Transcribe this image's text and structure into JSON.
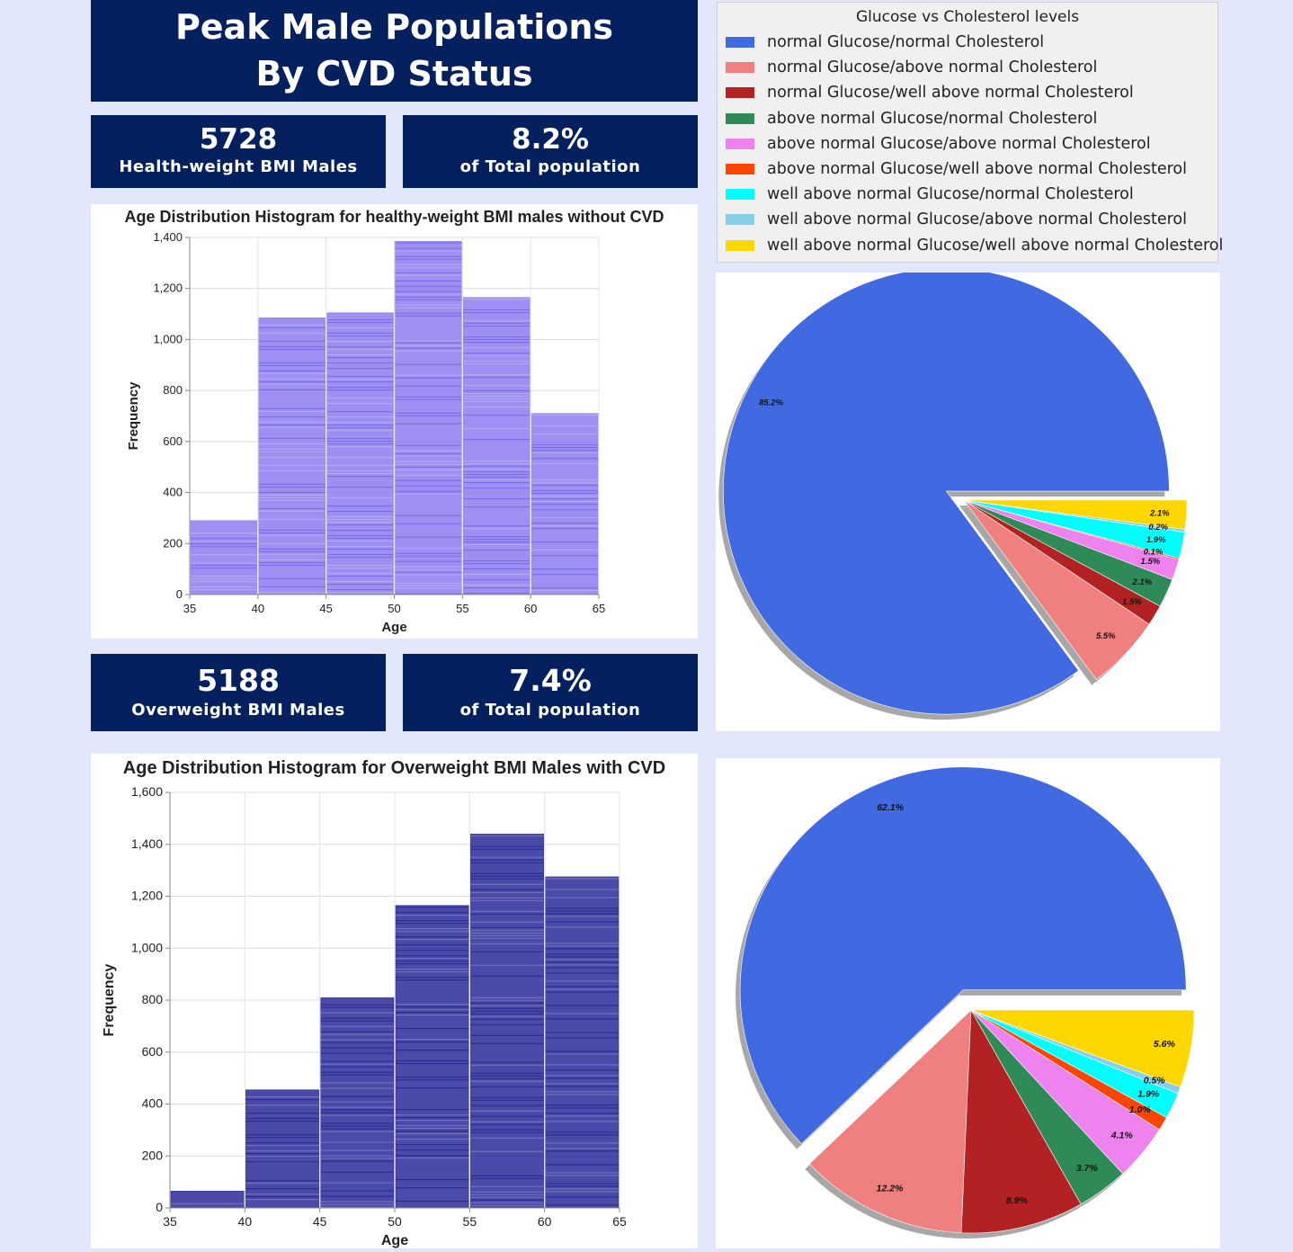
{
  "header": {
    "title_line1": "Peak Male Populations",
    "title_line2": "By CVD Status"
  },
  "kpis": {
    "healthy_count": "5728",
    "healthy_label": "Health-weight BMI Males",
    "healthy_pct": "8.2%",
    "healthy_pct_label": "of Total population",
    "overweight_count": "5188",
    "overweight_label": "Overweight BMI Males",
    "overweight_pct": "7.4%",
    "overweight_pct_label": "of Total population"
  },
  "legend": {
    "title": "Glucose vs Cholesterol levels",
    "items": [
      {
        "label": "normal Glucose/normal Cholesterol",
        "color": "#4169e1"
      },
      {
        "label": "normal Glucose/above normal Cholesterol",
        "color": "#f08080"
      },
      {
        "label": "normal Glucose/well above normal Cholesterol",
        "color": "#b22222"
      },
      {
        "label": "above normal Glucose/normal Cholesterol",
        "color": "#2e8b57"
      },
      {
        "label": "above normal Glucose/above normal Cholesterol",
        "color": "#ee82ee"
      },
      {
        "label": "above normal Glucose/well above normal Cholesterol",
        "color": "#ff4500"
      },
      {
        "label": "well above normal Glucose/normal Cholesterol",
        "color": "#00ffff"
      },
      {
        "label": "well above normal Glucose/above normal Cholesterol",
        "color": "#87ceeb"
      },
      {
        "label": "well above normal Glucose/well above normal Cholesterol",
        "color": "#ffd700"
      }
    ]
  },
  "chart_data": [
    {
      "type": "bar",
      "title": "Age Distribution Histogram for healthy-weight BMI males without CVD",
      "xlabel": "Age",
      "ylabel": "Frequency",
      "bin_edges": [
        35,
        40,
        45,
        50,
        55,
        60,
        65
      ],
      "x_ticks": [
        "35",
        "40",
        "45",
        "50",
        "55",
        "60",
        "65"
      ],
      "values": [
        290,
        1085,
        1105,
        1385,
        1165,
        710
      ],
      "ylim": [
        0,
        1400
      ],
      "y_ticks": [
        "0",
        "200",
        "400",
        "600",
        "800",
        "1,000",
        "1,200",
        "1,400"
      ],
      "grid": true,
      "color": "#8c7cf0"
    },
    {
      "type": "pie",
      "slices": [
        {
          "value": 85.2,
          "label": "85.2%",
          "color": "#4169e1"
        },
        {
          "value": 5.5,
          "label": "5.5%",
          "color": "#f08080"
        },
        {
          "value": 1.5,
          "label": "1.5%",
          "color": "#b22222"
        },
        {
          "value": 2.1,
          "label": "2.1%",
          "color": "#2e8b57"
        },
        {
          "value": 1.5,
          "label": "1.5%",
          "color": "#ee82ee"
        },
        {
          "value": 0.1,
          "label": "0.1%",
          "color": "#ff4500"
        },
        {
          "value": 1.9,
          "label": "1.9%",
          "color": "#00ffff"
        },
        {
          "value": 0.2,
          "label": "0.2%",
          "color": "#87ceeb"
        },
        {
          "value": 2.1,
          "label": "2.1%",
          "color": "#ffd700"
        }
      ]
    },
    {
      "type": "bar",
      "title": "Age Distribution Histogram for Overweight BMI Males with CVD",
      "xlabel": "Age",
      "ylabel": "Frequency",
      "bin_edges": [
        35,
        40,
        45,
        50,
        55,
        60,
        65
      ],
      "x_ticks": [
        "35",
        "40",
        "45",
        "50",
        "55",
        "60",
        "65"
      ],
      "values": [
        65,
        455,
        810,
        1165,
        1440,
        1275
      ],
      "ylim": [
        0,
        1600
      ],
      "y_ticks": [
        "0",
        "200",
        "400",
        "600",
        "800",
        "1,000",
        "1,200",
        "1,400",
        "1,600"
      ],
      "grid": true,
      "color": "#2a2a9a"
    },
    {
      "type": "pie",
      "slices": [
        {
          "value": 62.1,
          "label": "62.1%",
          "color": "#4169e1"
        },
        {
          "value": 12.2,
          "label": "12.2%",
          "color": "#f08080"
        },
        {
          "value": 8.9,
          "label": "8.9%",
          "color": "#b22222"
        },
        {
          "value": 3.7,
          "label": "3.7%",
          "color": "#2e8b57"
        },
        {
          "value": 4.1,
          "label": "4.1%",
          "color": "#ee82ee"
        },
        {
          "value": 1.0,
          "label": "1.0%",
          "color": "#ff4500"
        },
        {
          "value": 1.9,
          "label": "1.9%",
          "color": "#00ffff"
        },
        {
          "value": 0.5,
          "label": "0.5%",
          "color": "#87ceeb"
        },
        {
          "value": 5.6,
          "label": "5.6%",
          "color": "#ffd700"
        }
      ]
    }
  ]
}
